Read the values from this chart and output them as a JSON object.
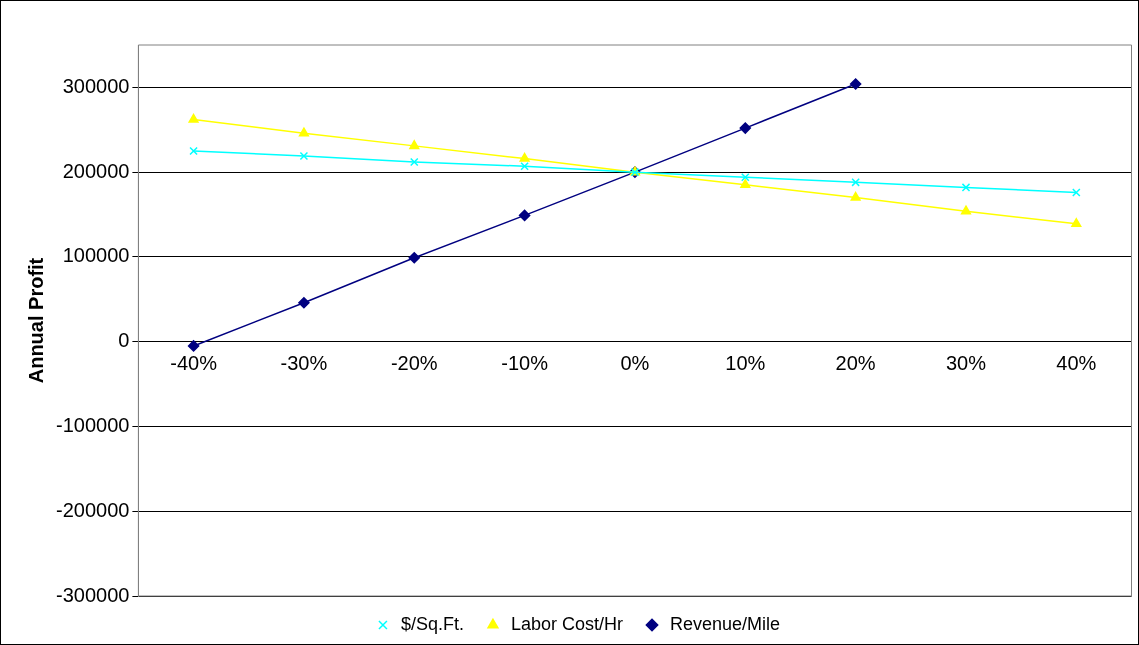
{
  "chart_data": {
    "type": "line",
    "ylabel": "Annual Profit",
    "categories": [
      "-40%",
      "-30%",
      "-20%",
      "-10%",
      "0%",
      "10%",
      "20%",
      "30%",
      "40%"
    ],
    "series": [
      {
        "name": "Revenue/Mile",
        "color": "#000080",
        "marker": "diamond",
        "values": [
          -5000,
          46000,
          99000,
          149000,
          200000,
          252000,
          304000,
          null,
          null
        ]
      },
      {
        "name": "Labor Cost/Hr",
        "color": "#ffff00",
        "marker": "triangle",
        "values": [
          262000,
          246000,
          231000,
          216000,
          200000,
          185000,
          170000,
          154000,
          139000
        ]
      },
      {
        "name": "$/Sq.Ft.",
        "color": "#00ffff",
        "marker": "cross",
        "values": [
          225000,
          219000,
          212000,
          207000,
          200000,
          194000,
          188000,
          182000,
          176000
        ]
      }
    ],
    "ylim": [
      -300000,
      350000
    ],
    "yticks": [
      -300000,
      -200000,
      -100000,
      0,
      100000,
      200000,
      300000
    ],
    "grid": "y",
    "legend": "bottom",
    "line_style": "solid"
  }
}
